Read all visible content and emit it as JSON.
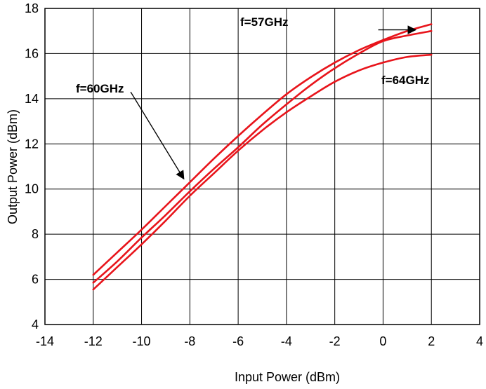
{
  "chart_data": {
    "type": "line",
    "title": "",
    "xlabel": "Input Power (dBm)",
    "ylabel": "Output Power (dBm)",
    "xlim": [
      -14,
      4
    ],
    "ylim": [
      4,
      18
    ],
    "xticks": [
      -14,
      -12,
      -10,
      -8,
      -6,
      -4,
      -2,
      0,
      2,
      4
    ],
    "yticks": [
      4,
      6,
      8,
      10,
      12,
      14,
      16,
      18
    ],
    "xtick_labels": [
      "-14",
      "-12",
      "-10",
      "-8",
      "-6",
      "-4",
      "-2",
      "0",
      "2",
      "4"
    ],
    "ytick_labels": [
      "4",
      "6",
      "8",
      "10",
      "12",
      "14",
      "16",
      "18"
    ],
    "grid": true,
    "legend": "none",
    "line_color": "#e8141b",
    "x": [
      -12,
      -11,
      -10,
      -9,
      -8,
      -7,
      -6,
      -5,
      -4,
      -3,
      -2,
      -1,
      0,
      1,
      2
    ],
    "series": [
      {
        "values": [
          6.2,
          7.2,
          8.2,
          9.25,
          10.3,
          11.35,
          12.35,
          13.3,
          14.2,
          14.95,
          15.6,
          16.15,
          16.6,
          17.0,
          17.3
        ]
      },
      {
        "values": [
          5.85,
          6.8,
          7.85,
          8.85,
          9.9,
          10.9,
          11.85,
          12.85,
          13.75,
          14.6,
          15.35,
          16.0,
          16.55,
          16.8,
          17.0
        ]
      },
      {
        "values": [
          5.55,
          6.55,
          7.55,
          8.6,
          9.7,
          10.7,
          11.7,
          12.6,
          13.4,
          14.1,
          14.75,
          15.25,
          15.6,
          15.85,
          15.95
        ]
      }
    ],
    "annotations": [
      {
        "text": "f=57GHz",
        "arrow_from": [
          -0.2,
          17.05
        ],
        "arrow_to": [
          1.35,
          17.05
        ]
      },
      {
        "text": "f=60GHz",
        "arrow_from": [
          -10.45,
          14.3
        ],
        "arrow_to": [
          -8.25,
          10.45
        ]
      },
      {
        "text": "f=64GHz",
        "arrow_from": null,
        "arrow_to": null
      }
    ]
  }
}
